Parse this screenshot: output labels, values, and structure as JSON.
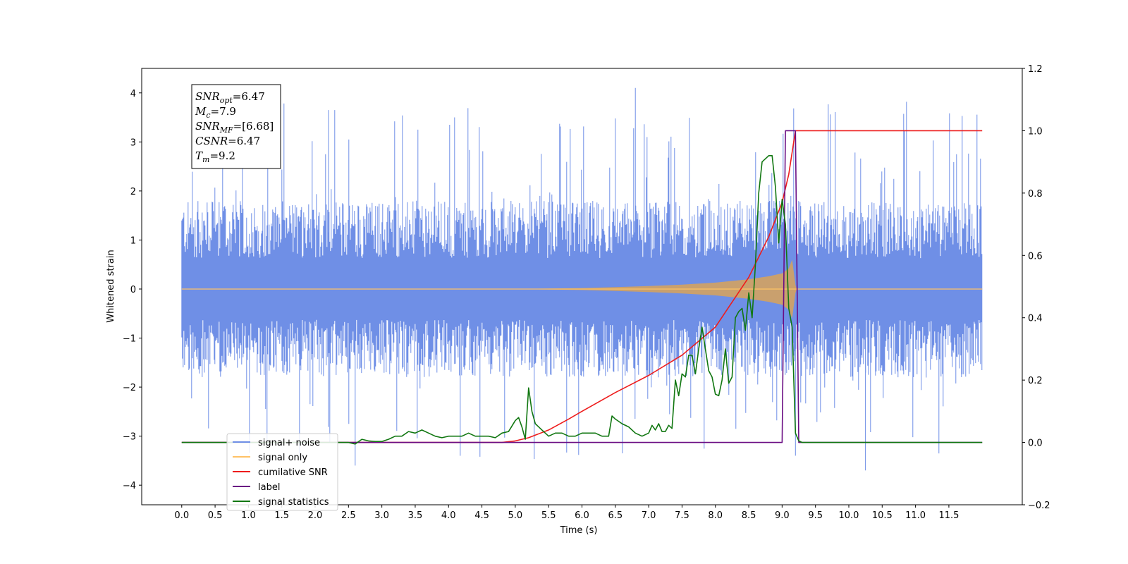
{
  "chart_data": {
    "type": "line",
    "title": "",
    "xlabel": "Time (s)",
    "ylabel": "Whitened strain",
    "xlim": [
      -0.6,
      12.6
    ],
    "ylim": [
      -4.4,
      4.5
    ],
    "y2lim": [
      -0.2,
      1.2
    ],
    "xticks": [
      "0.0",
      "0.5",
      "1.0",
      "1.5",
      "2.0",
      "2.5",
      "3.0",
      "3.5",
      "4.0",
      "4.5",
      "5.0",
      "5.5",
      "6.0",
      "6.5",
      "7.0",
      "7.5",
      "8.0",
      "8.5",
      "9.0",
      "9.5",
      "10.0",
      "10.5",
      "11.0",
      "11.5"
    ],
    "yticks": [
      "−4",
      "−3",
      "−2",
      "−1",
      "0",
      "1",
      "2",
      "3",
      "4"
    ],
    "y2ticks": [
      "−0.2",
      "0.0",
      "0.2",
      "0.4",
      "0.6",
      "0.8",
      "1.0",
      "1.2"
    ],
    "grid": false,
    "legend_placement": "lower-left",
    "noise_band": {
      "x_start": 0.0,
      "x_end": 12.0,
      "typical_min": -1.8,
      "typical_max": 1.8,
      "extreme_min": -3.7,
      "extreme_max": 4.1
    },
    "signal_envelope": {
      "x": [
        0.0,
        5.0,
        6.0,
        7.0,
        7.5,
        8.0,
        8.5,
        8.8,
        9.0,
        9.1,
        9.15,
        9.2,
        9.22,
        12.0
      ],
      "amplitude": [
        0.0,
        0.0,
        0.02,
        0.06,
        0.09,
        0.13,
        0.2,
        0.26,
        0.32,
        0.42,
        0.6,
        0.08,
        0.0,
        0.0
      ]
    },
    "series": [
      {
        "name": "signal+ noise",
        "color": "#6f8fe6",
        "axis": "left",
        "x": [
          0.0,
          12.0
        ],
        "y": [
          0.0,
          0.0
        ]
      },
      {
        "name": "signal only",
        "color": "#ffc266",
        "axis": "left",
        "x": [
          0.0,
          12.0
        ],
        "y": [
          0.0,
          0.0
        ]
      },
      {
        "name": "cumilative SNR",
        "color": "#ee1c1c",
        "axis": "right",
        "x": [
          0.0,
          4.5,
          4.8,
          5.0,
          5.2,
          5.5,
          5.8,
          6.0,
          6.5,
          7.0,
          7.5,
          8.0,
          8.5,
          8.8,
          9.0,
          9.1,
          9.2,
          12.0
        ],
        "y": [
          0.0,
          0.0,
          0.0,
          0.005,
          0.015,
          0.04,
          0.075,
          0.1,
          0.16,
          0.215,
          0.28,
          0.37,
          0.53,
          0.66,
          0.77,
          0.86,
          1.0,
          1.0
        ]
      },
      {
        "name": "label",
        "color": "#6a0d83",
        "axis": "right",
        "x": [
          0.0,
          9.0,
          9.05,
          9.2,
          9.25,
          12.0
        ],
        "y": [
          0.0,
          0.0,
          1.0,
          1.0,
          0.0,
          0.0
        ]
      },
      {
        "name": "signal statistics",
        "color": "#117711",
        "axis": "right",
        "x": [
          0.0,
          2.5,
          2.6,
          2.7,
          2.8,
          2.9,
          3.0,
          3.1,
          3.2,
          3.3,
          3.4,
          3.5,
          3.6,
          3.7,
          3.8,
          3.9,
          4.0,
          4.1,
          4.2,
          4.3,
          4.4,
          4.5,
          4.6,
          4.7,
          4.8,
          4.9,
          5.0,
          5.05,
          5.1,
          5.15,
          5.2,
          5.25,
          5.3,
          5.4,
          5.5,
          5.6,
          5.7,
          5.8,
          5.9,
          6.0,
          6.1,
          6.2,
          6.3,
          6.4,
          6.45,
          6.5,
          6.6,
          6.7,
          6.8,
          6.9,
          7.0,
          7.05,
          7.1,
          7.15,
          7.2,
          7.25,
          7.3,
          7.35,
          7.4,
          7.45,
          7.5,
          7.55,
          7.6,
          7.65,
          7.7,
          7.75,
          7.8,
          7.85,
          7.9,
          7.95,
          8.0,
          8.05,
          8.1,
          8.15,
          8.2,
          8.25,
          8.3,
          8.35,
          8.4,
          8.45,
          8.5,
          8.55,
          8.6,
          8.65,
          8.7,
          8.8,
          8.85,
          8.9,
          8.95,
          9.0,
          9.05,
          9.1,
          9.15,
          9.2,
          9.25,
          9.3,
          9.35,
          9.4,
          9.6,
          9.8,
          12.0
        ],
        "y": [
          0.0,
          0.0,
          -0.005,
          0.01,
          0.005,
          0.003,
          0.003,
          0.01,
          0.02,
          0.02,
          0.035,
          0.03,
          0.04,
          0.03,
          0.02,
          0.015,
          0.02,
          0.02,
          0.02,
          0.03,
          0.02,
          0.02,
          0.02,
          0.015,
          0.03,
          0.035,
          0.07,
          0.08,
          0.05,
          0.01,
          0.175,
          0.1,
          0.06,
          0.04,
          0.02,
          0.03,
          0.03,
          0.02,
          0.02,
          0.03,
          0.03,
          0.03,
          0.02,
          0.02,
          0.085,
          0.075,
          0.06,
          0.05,
          0.03,
          0.02,
          0.03,
          0.055,
          0.04,
          0.06,
          0.035,
          0.035,
          0.055,
          0.045,
          0.2,
          0.15,
          0.22,
          0.21,
          0.28,
          0.28,
          0.22,
          0.3,
          0.37,
          0.3,
          0.23,
          0.21,
          0.155,
          0.15,
          0.2,
          0.3,
          0.19,
          0.21,
          0.4,
          0.42,
          0.43,
          0.36,
          0.48,
          0.4,
          0.57,
          0.8,
          0.9,
          0.92,
          0.92,
          0.82,
          0.64,
          0.78,
          0.7,
          0.43,
          0.37,
          0.03,
          0.005,
          0.0,
          0.0,
          0.0,
          0.0,
          0.0,
          0.0
        ]
      }
    ],
    "annotation_lines": [
      {
        "sym": "SNR",
        "sub": "opt",
        "rest": "=6.47"
      },
      {
        "sym": "M",
        "sub": "c",
        "rest": "=7.9"
      },
      {
        "sym": "SNR",
        "sub": "MF",
        "rest": "=[6.68]"
      },
      {
        "sym": "CSNR",
        "sub": "",
        "rest": "=6.47"
      },
      {
        "sym": "T",
        "sub": "m",
        "rest": "=9.2"
      }
    ]
  }
}
